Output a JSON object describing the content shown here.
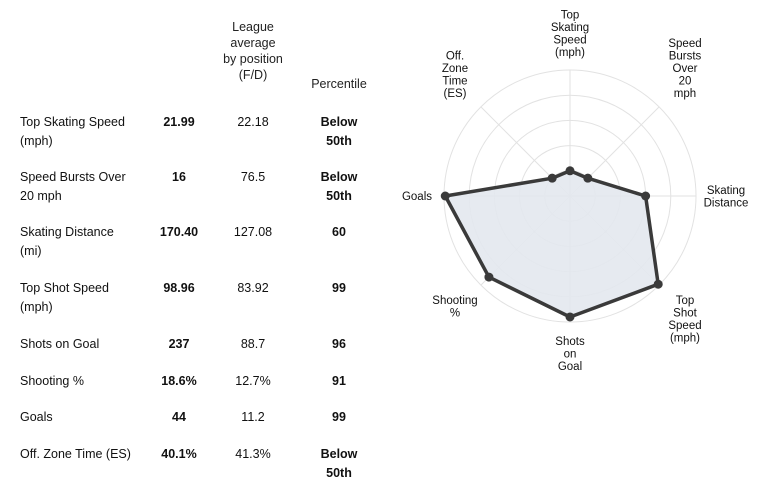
{
  "table": {
    "header_avg": [
      "League",
      "average",
      "by position",
      "(F/D)"
    ],
    "header_pct": "Percentile",
    "rows": [
      {
        "metric": [
          "Top Skating Speed",
          "(mph)"
        ],
        "value": "21.99",
        "avg": "22.18",
        "pct": [
          "Below",
          "50th"
        ]
      },
      {
        "metric": [
          "Speed Bursts Over",
          "20 mph"
        ],
        "value": "16",
        "avg": "76.5",
        "pct": [
          "Below",
          "50th"
        ]
      },
      {
        "metric": [
          "Skating Distance",
          "(mi)"
        ],
        "value": "170.40",
        "avg": "127.08",
        "pct": [
          "60"
        ]
      },
      {
        "metric": [
          "Top Shot Speed",
          "(mph)"
        ],
        "value": "98.96",
        "avg": "83.92",
        "pct": [
          "99"
        ]
      },
      {
        "metric": [
          "Shots on Goal"
        ],
        "value": "237",
        "avg": "88.7",
        "pct": [
          "96"
        ]
      },
      {
        "metric": [
          "Shooting %"
        ],
        "value": "18.6%",
        "avg": "12.7%",
        "pct": [
          "91"
        ]
      },
      {
        "metric": [
          "Goals"
        ],
        "value": "44",
        "avg": "11.2",
        "pct": [
          "99"
        ]
      },
      {
        "metric": [
          "Off. Zone Time (ES)"
        ],
        "value": "40.1%",
        "avg": "41.3%",
        "pct": [
          "Below",
          "50th"
        ]
      }
    ]
  },
  "chart_data": {
    "type": "radar",
    "axes": [
      {
        "label": [
          "Top",
          "Skating",
          "Speed",
          "(mph)"
        ],
        "value": 20
      },
      {
        "label": [
          "Speed",
          "Bursts",
          "Over",
          "20",
          "mph"
        ],
        "value": 20
      },
      {
        "label": [
          "Skating",
          "Distance"
        ],
        "value": 60
      },
      {
        "label": [
          "Top",
          "Shot",
          "Speed",
          "(mph)"
        ],
        "value": 99
      },
      {
        "label": [
          "Shots",
          "on",
          "Goal"
        ],
        "value": 96
      },
      {
        "label": [
          "Shooting",
          "%"
        ],
        "value": 91
      },
      {
        "label": [
          "Goals"
        ],
        "value": 99
      },
      {
        "label": [
          "Off.",
          "Zone",
          "Time",
          "(ES)"
        ],
        "value": 20
      }
    ],
    "rmax": 100,
    "rings": [
      20,
      40,
      60,
      80,
      100
    ],
    "colors": {
      "line": "#3a3a3a",
      "fill": "#e3e8ee",
      "grid": "#e2e2e2"
    }
  }
}
